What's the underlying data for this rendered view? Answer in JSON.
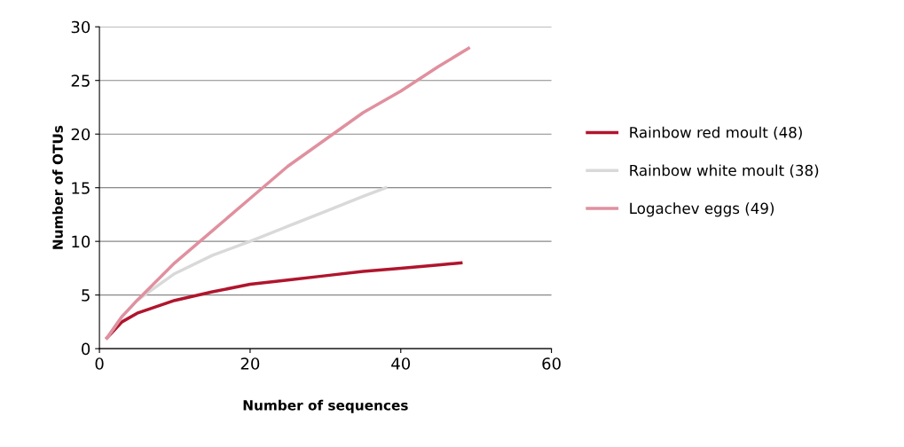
{
  "chart_data": {
    "type": "line",
    "xlabel": "Number of sequences",
    "ylabel": "Number of OTUs",
    "xlim": [
      0,
      60
    ],
    "xticks": [
      0,
      20,
      40,
      60
    ],
    "ylim": [
      0,
      30
    ],
    "yticks": [
      0,
      5,
      10,
      15,
      20,
      25,
      30
    ],
    "grid": "y",
    "legend": "right",
    "marker": "none",
    "line_style": "solid",
    "series": [
      {
        "name": "Rainbow red moult (48)",
        "color": "#b0152d",
        "x": [
          1,
          3,
          5,
          10,
          15,
          20,
          25,
          30,
          35,
          40,
          45,
          48
        ],
        "values": [
          1,
          2.5,
          3.3,
          4.5,
          5.3,
          6,
          6.4,
          6.8,
          7.2,
          7.5,
          7.8,
          8
        ]
      },
      {
        "name": "Rainbow white moult (38)",
        "color": "#d9d9d9",
        "x": [
          1,
          3,
          5,
          10,
          15,
          20,
          25,
          30,
          35,
          38
        ],
        "values": [
          1,
          3,
          4.5,
          7,
          8.7,
          10,
          11.4,
          12.8,
          14.2,
          15
        ]
      },
      {
        "name": "Logachev eggs (49)",
        "color": "#e0909f",
        "x": [
          1,
          3,
          5,
          10,
          15,
          20,
          25,
          30,
          35,
          40,
          45,
          49
        ],
        "values": [
          1,
          3,
          4.5,
          8,
          11,
          14,
          17,
          19.5,
          22,
          24,
          26.3,
          28
        ]
      }
    ]
  }
}
